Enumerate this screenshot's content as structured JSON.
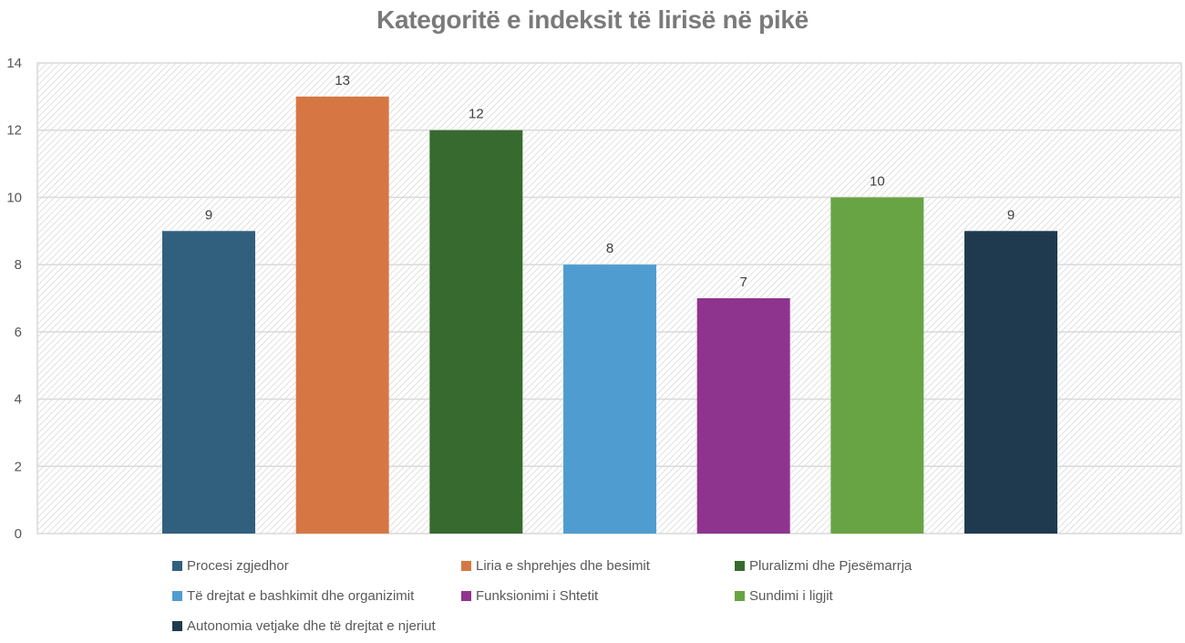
{
  "chart_data": {
    "type": "bar",
    "title": "Kategoritë e indeksit të lirisë në pikë",
    "xlabel": "",
    "ylabel": "",
    "ylim": [
      0,
      14
    ],
    "yticks": [
      "0",
      "2",
      "4",
      "6",
      "8",
      "10",
      "12",
      "14"
    ],
    "grid": true,
    "legend_position": "bottom",
    "series": [
      {
        "name": "Procesi zgjedhor",
        "value": 9,
        "color": "#31607f"
      },
      {
        "name": "Liria e shprehjes dhe besimit",
        "value": 13,
        "color": "#d67743"
      },
      {
        "name": "Pluralizmi dhe Pjesëmarrja",
        "value": 12,
        "color": "#376a2e"
      },
      {
        "name": "Të drejtat e bashkimit dhe organizimit",
        "value": 8,
        "color": "#4f9dd0"
      },
      {
        "name": "Funksionimi i Shtetit",
        "value": 7,
        "color": "#8e348f"
      },
      {
        "name": "Sundimi i ligjit",
        "value": 10,
        "color": "#68a444"
      },
      {
        "name": "Autonomia vetjake dhe të drejtat e njeriut",
        "value": 9,
        "color": "#1f3a4e"
      }
    ]
  }
}
